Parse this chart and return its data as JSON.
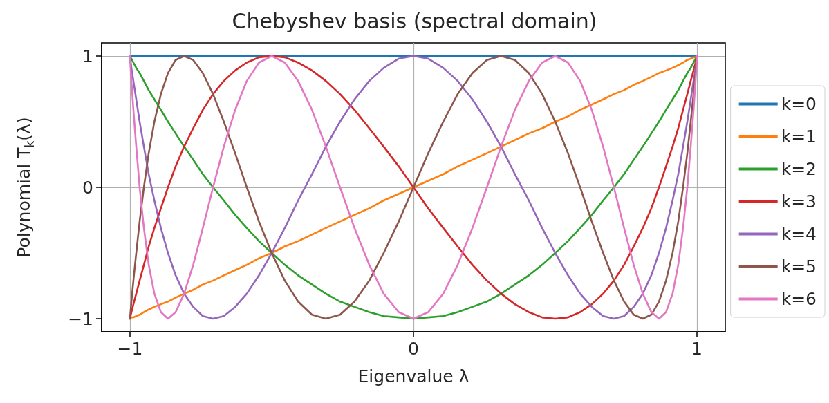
{
  "chart_data": {
    "type": "line",
    "title": "Chebyshev basis (spectral domain)",
    "xlabel": "Eigenvalue λ",
    "ylabel": "Polynomial T$_{k}$(λ)",
    "xlim": [
      -1.1,
      1.1
    ],
    "ylim": [
      -1.1,
      1.1
    ],
    "xticks": [
      {
        "value": -1,
        "label": "−1"
      },
      0,
      1
    ],
    "yticks": [
      {
        "value": -1,
        "label": "−1"
      },
      0,
      1
    ],
    "grid": true,
    "legend": "right",
    "x": [
      -1,
      -0.999,
      -0.995,
      -0.988,
      -0.978,
      -0.966,
      -0.951,
      -0.934,
      -0.914,
      -0.891,
      -0.866,
      -0.839,
      -0.809,
      -0.777,
      -0.743,
      -0.707,
      -0.669,
      -0.629,
      -0.588,
      -0.545,
      -0.5,
      -0.454,
      -0.407,
      -0.358,
      -0.309,
      -0.259,
      -0.208,
      -0.156,
      -0.105,
      -0.052,
      0,
      0.052,
      0.105,
      0.156,
      0.208,
      0.259,
      0.309,
      0.358,
      0.407,
      0.454,
      0.5,
      0.545,
      0.588,
      0.629,
      0.669,
      0.707,
      0.743,
      0.777,
      0.809,
      0.839,
      0.866,
      0.891,
      0.914,
      0.934,
      0.951,
      0.966,
      0.978,
      0.988,
      0.995,
      0.999,
      1
    ],
    "series": [
      {
        "name": "k=0",
        "color": "#1f77b4",
        "values": [
          1,
          1,
          1,
          1,
          1,
          1,
          1,
          1,
          1,
          1,
          1,
          1,
          1,
          1,
          1,
          1,
          1,
          1,
          1,
          1,
          1,
          1,
          1,
          1,
          1,
          1,
          1,
          1,
          1,
          1,
          1,
          1,
          1,
          1,
          1,
          1,
          1,
          1,
          1,
          1,
          1,
          1,
          1,
          1,
          1,
          1,
          1,
          1,
          1,
          1,
          1,
          1,
          1,
          1,
          1,
          1,
          1,
          1,
          1,
          1,
          1
        ]
      },
      {
        "name": "k=1",
        "color": "#ff7f0e",
        "values": [
          -1,
          -1,
          -0.99,
          -0.99,
          -0.98,
          -0.97,
          -0.95,
          -0.93,
          -0.91,
          -0.89,
          -0.87,
          -0.84,
          -0.81,
          -0.78,
          -0.74,
          -0.71,
          -0.67,
          -0.63,
          -0.59,
          -0.54,
          -0.5,
          -0.45,
          -0.41,
          -0.36,
          -0.31,
          -0.26,
          -0.21,
          -0.16,
          -0.1,
          -0.05,
          0,
          0.05,
          0.1,
          0.16,
          0.21,
          0.26,
          0.31,
          0.36,
          0.41,
          0.45,
          0.5,
          0.54,
          0.59,
          0.63,
          0.67,
          0.71,
          0.74,
          0.78,
          0.81,
          0.84,
          0.87,
          0.89,
          0.91,
          0.93,
          0.95,
          0.97,
          0.98,
          0.99,
          0.99,
          1,
          1
        ]
      },
      {
        "name": "k=2",
        "color": "#2ca02c",
        "values": [
          1,
          0.99,
          0.98,
          0.95,
          0.91,
          0.87,
          0.81,
          0.74,
          0.67,
          0.59,
          0.5,
          0.41,
          0.31,
          0.21,
          0.1,
          0,
          -0.1,
          -0.21,
          -0.31,
          -0.41,
          -0.5,
          -0.59,
          -0.67,
          -0.74,
          -0.81,
          -0.87,
          -0.91,
          -0.95,
          -0.98,
          -0.99,
          -1,
          -0.99,
          -0.98,
          -0.95,
          -0.91,
          -0.87,
          -0.81,
          -0.74,
          -0.67,
          -0.59,
          -0.5,
          -0.41,
          -0.31,
          -0.21,
          -0.1,
          0,
          0.1,
          0.21,
          0.31,
          0.41,
          0.5,
          0.59,
          0.67,
          0.74,
          0.81,
          0.87,
          0.91,
          0.95,
          0.98,
          0.99,
          1
        ]
      },
      {
        "name": "k=3",
        "color": "#d62728",
        "values": [
          -1,
          -0.99,
          -0.95,
          -0.89,
          -0.81,
          -0.71,
          -0.59,
          -0.45,
          -0.31,
          -0.16,
          0,
          0.16,
          0.31,
          0.45,
          0.59,
          0.71,
          0.81,
          0.89,
          0.95,
          0.99,
          1,
          0.99,
          0.95,
          0.89,
          0.81,
          0.71,
          0.59,
          0.45,
          0.31,
          0.16,
          0,
          -0.16,
          -0.31,
          -0.45,
          -0.59,
          -0.71,
          -0.81,
          -0.89,
          -0.95,
          -0.99,
          -1,
          -0.99,
          -0.95,
          -0.89,
          -0.81,
          -0.71,
          -0.59,
          -0.45,
          -0.31,
          -0.16,
          0,
          0.16,
          0.31,
          0.45,
          0.59,
          0.71,
          0.81,
          0.89,
          0.95,
          0.99,
          1
        ]
      },
      {
        "name": "k=4",
        "color": "#9467bd",
        "values": [
          1,
          0.98,
          0.91,
          0.81,
          0.67,
          0.5,
          0.31,
          0.1,
          -0.1,
          -0.31,
          -0.5,
          -0.67,
          -0.81,
          -0.91,
          -0.98,
          -1,
          -0.98,
          -0.91,
          -0.81,
          -0.67,
          -0.5,
          -0.31,
          -0.1,
          0.1,
          0.31,
          0.5,
          0.67,
          0.81,
          0.91,
          0.98,
          1,
          0.98,
          0.91,
          0.81,
          0.67,
          0.5,
          0.31,
          0.1,
          -0.1,
          -0.31,
          -0.5,
          -0.67,
          -0.81,
          -0.91,
          -0.98,
          -1,
          -0.98,
          -0.91,
          -0.81,
          -0.67,
          -0.5,
          -0.31,
          -0.1,
          0.1,
          0.31,
          0.5,
          0.67,
          0.81,
          0.91,
          0.98,
          1
        ]
      },
      {
        "name": "k=5",
        "color": "#8c564b",
        "values": [
          -1,
          -0.97,
          -0.87,
          -0.71,
          -0.5,
          -0.26,
          0,
          0.26,
          0.5,
          0.71,
          0.87,
          0.97,
          1,
          0.97,
          0.87,
          0.71,
          0.5,
          0.26,
          0,
          -0.26,
          -0.5,
          -0.71,
          -0.87,
          -0.97,
          -1,
          -0.97,
          -0.87,
          -0.71,
          -0.5,
          -0.26,
          0,
          0.26,
          0.5,
          0.71,
          0.87,
          0.97,
          1,
          0.97,
          0.87,
          0.71,
          0.5,
          0.26,
          0,
          -0.26,
          -0.5,
          -0.71,
          -0.87,
          -0.97,
          -1,
          -0.97,
          -0.87,
          -0.71,
          -0.5,
          -0.26,
          0,
          0.26,
          0.5,
          0.71,
          0.87,
          0.97,
          1
        ]
      },
      {
        "name": "k=6",
        "color": "#e377c2",
        "values": [
          1,
          0.95,
          0.81,
          0.59,
          0.31,
          0,
          -0.31,
          -0.59,
          -0.81,
          -0.95,
          -1,
          -0.95,
          -0.81,
          -0.59,
          -0.31,
          0,
          0.31,
          0.59,
          0.81,
          0.95,
          1,
          0.95,
          0.81,
          0.59,
          0.31,
          0,
          -0.31,
          -0.59,
          -0.81,
          -0.95,
          -1,
          -0.95,
          -0.81,
          -0.59,
          -0.31,
          0,
          0.31,
          0.59,
          0.81,
          0.95,
          1,
          0.95,
          0.81,
          0.59,
          0.31,
          0,
          -0.31,
          -0.59,
          -0.81,
          -0.95,
          -1,
          -0.95,
          -0.81,
          -0.59,
          -0.31,
          0,
          0.31,
          0.59,
          0.81,
          0.95,
          1
        ]
      }
    ]
  }
}
